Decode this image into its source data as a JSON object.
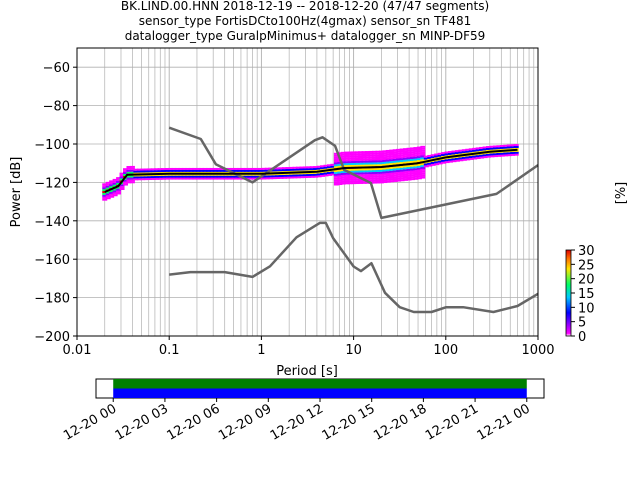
{
  "header": {
    "title_line1": "BK.LIND.00.HNN   2018-12-19 -- 2018-12-20  (47/47 segments)",
    "title_line2": "sensor_type FortisDCto100Hz(4gmax) sensor_sn TF481",
    "title_line3": "datalogger_type GuralpMinimus+ datalogger_sn MINP-DF59"
  },
  "chart_data": [
    {
      "type": "line",
      "subtype": "probabilistic-power-spectral-density",
      "xlabel": "Period [s]",
      "ylabel": "Power [dB]",
      "xscale": "log",
      "xlim": [
        0.01,
        1000
      ],
      "ylim": [
        -200,
        -50
      ],
      "xticks": [
        {
          "value": 0.01,
          "label": "0.01"
        },
        {
          "value": 0.1,
          "label": "0.1"
        },
        {
          "value": 1,
          "label": "1"
        },
        {
          "value": 10,
          "label": "10"
        },
        {
          "value": 100,
          "label": "100"
        },
        {
          "value": 1000,
          "label": "1000"
        }
      ],
      "yticks": [
        {
          "value": -60,
          "label": "−60"
        },
        {
          "value": -80,
          "label": "−80"
        },
        {
          "value": -100,
          "label": "−100"
        },
        {
          "value": -120,
          "label": "−120"
        },
        {
          "value": -140,
          "label": "−140"
        },
        {
          "value": -160,
          "label": "−160"
        },
        {
          "value": -180,
          "label": "−180"
        },
        {
          "value": -200,
          "label": "−200"
        }
      ],
      "grid": true,
      "series": [
        {
          "role": "new-high-noise-model",
          "color": "#666666",
          "points": [
            [
              0.1,
              -91.5
            ],
            [
              0.22,
              -97.4
            ],
            [
              0.32,
              -110.5
            ],
            [
              0.8,
              -120
            ],
            [
              3.8,
              -98
            ],
            [
              4.6,
              -96.5
            ],
            [
              6.3,
              -101
            ],
            [
              7.9,
              -113.5
            ],
            [
              15.4,
              -120.3
            ],
            [
              20,
              -138.5
            ],
            [
              354.8,
              -126
            ],
            [
              1000,
              -111
            ]
          ]
        },
        {
          "role": "new-low-noise-model",
          "color": "#666666",
          "points": [
            [
              0.1,
              -168
            ],
            [
              0.17,
              -166.7
            ],
            [
              0.4,
              -166.7
            ],
            [
              0.8,
              -169.2
            ],
            [
              1.24,
              -163.7
            ],
            [
              2.4,
              -148.6
            ],
            [
              4.3,
              -141.1
            ],
            [
              5,
              -141.1
            ],
            [
              6,
              -149
            ],
            [
              10,
              -163.8
            ],
            [
              12,
              -166.2
            ],
            [
              15.6,
              -162.1
            ],
            [
              21.9,
              -177.5
            ],
            [
              31.6,
              -185
            ],
            [
              45,
              -187.5
            ],
            [
              70,
              -187.5
            ],
            [
              101,
              -185
            ],
            [
              154,
              -185
            ],
            [
              328,
              -187.5
            ],
            [
              600,
              -184.4
            ],
            [
              1000,
              -178
            ]
          ]
        },
        {
          "role": "mode-ppsd",
          "color": "#000000",
          "points": [
            [
              0.02,
              -125
            ],
            [
              0.028,
              -122
            ],
            [
              0.035,
              -116
            ],
            [
              0.1,
              -115.5
            ],
            [
              1,
              -115.5
            ],
            [
              4,
              -114.5
            ],
            [
              8,
              -112.5
            ],
            [
              20,
              -112
            ],
            [
              50,
              -110
            ],
            [
              100,
              -107
            ],
            [
              300,
              -104
            ],
            [
              600,
              -103
            ]
          ]
        }
      ],
      "colorbar": {
        "label": "[%]",
        "range": [
          0,
          30
        ],
        "ticks": [
          {
            "value": 0,
            "label": "0"
          },
          {
            "value": 5,
            "label": "5"
          },
          {
            "value": 10,
            "label": "10"
          },
          {
            "value": 15,
            "label": "15"
          },
          {
            "value": 20,
            "label": "20"
          },
          {
            "value": 25,
            "label": "25"
          },
          {
            "value": 30,
            "label": "30"
          }
        ]
      }
    },
    {
      "type": "bar",
      "subtype": "data-coverage",
      "xlim": [
        "2018-12-19T23:00",
        "2018-12-21T01:00"
      ],
      "ticks": [
        {
          "value": "2018-12-20T00:00",
          "label": "12-20 00"
        },
        {
          "value": "2018-12-20T03:00",
          "label": "12-20 03"
        },
        {
          "value": "2018-12-20T06:00",
          "label": "12-20 06"
        },
        {
          "value": "2018-12-20T09:00",
          "label": "12-20 09"
        },
        {
          "value": "2018-12-20T12:00",
          "label": "12-20 12"
        },
        {
          "value": "2018-12-20T15:00",
          "label": "12-20 15"
        },
        {
          "value": "2018-12-20T18:00",
          "label": "12-20 18"
        },
        {
          "value": "2018-12-20T21:00",
          "label": "12-20 21"
        },
        {
          "value": "2018-12-21T00:00",
          "label": "12-21 00"
        }
      ],
      "bars": [
        {
          "role": "used",
          "start": "2018-12-20T00:00",
          "end": "2018-12-21T00:00",
          "color": "#008000"
        },
        {
          "role": "available",
          "start": "2018-12-20T00:00",
          "end": "2018-12-21T00:00",
          "color": "#0000ff"
        }
      ]
    }
  ]
}
